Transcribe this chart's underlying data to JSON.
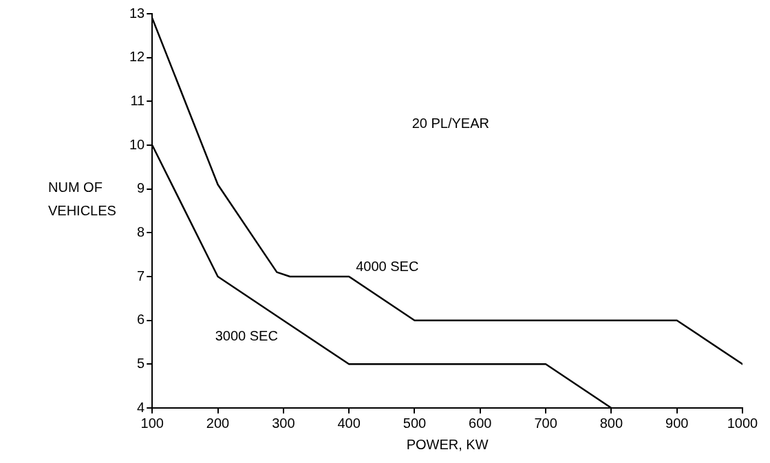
{
  "chart_data": {
    "type": "line",
    "xlabel": "POWER, KW",
    "ylabel": "NUM OF VEHICLES",
    "annotations": [
      "20 PL/YEAR"
    ],
    "xlim": [
      100,
      1000
    ],
    "xticks": [
      100,
      200,
      300,
      400,
      500,
      600,
      700,
      800,
      900,
      1000
    ],
    "ylim": [
      4,
      13
    ],
    "yticks": [
      4,
      5,
      6,
      7,
      8,
      9,
      10,
      11,
      12,
      13
    ],
    "grid": false,
    "legend": false,
    "marker": "none",
    "line_style": "solid",
    "series": [
      {
        "name": "4000 SEC",
        "color": "#000000",
        "x": [
          100,
          200,
          290,
          310,
          400,
          500,
          900,
          1000
        ],
        "values": [
          12.9,
          9.1,
          7.1,
          7,
          7,
          6,
          6,
          5
        ]
      },
      {
        "name": "3000 SEC",
        "color": "#000000",
        "x": [
          100,
          200,
          300,
          400,
          700,
          800
        ],
        "values": [
          10,
          7,
          6,
          5,
          5,
          4
        ]
      }
    ]
  }
}
